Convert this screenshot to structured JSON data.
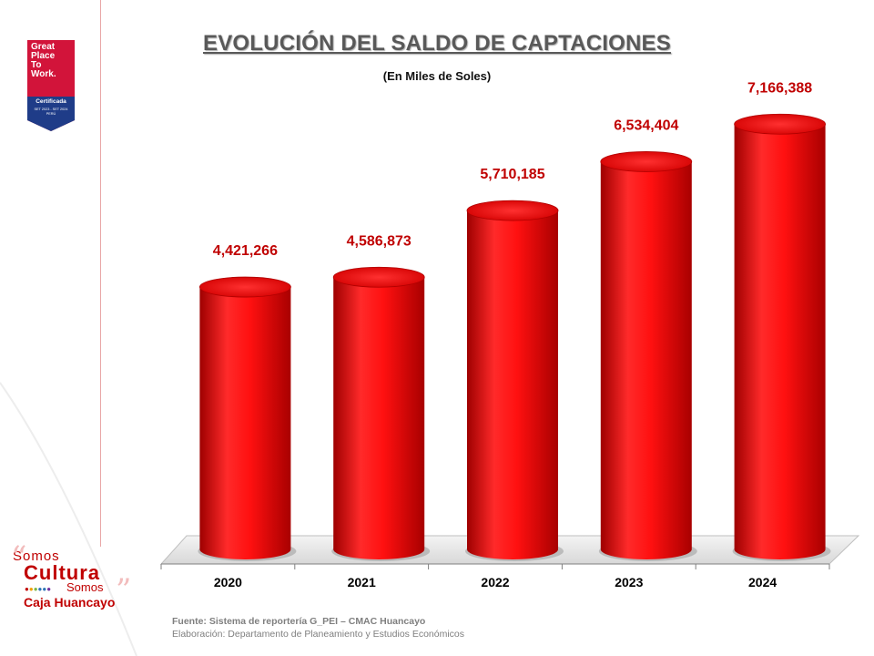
{
  "badge": {
    "line1": "Great",
    "line2": "Place",
    "line3": "To",
    "line4": "Work.",
    "certified": "Certificada",
    "period": "SET 2023 - SET 2024",
    "country": "PERÚ",
    "color": "#d2143a",
    "band_color": "#1f3c88"
  },
  "brand": {
    "somos_top": "Somos",
    "cultura": "Cultura",
    "somos_bottom": "Somos",
    "caja": "Caja Huancayo",
    "dot_colors": [
      "#c00000",
      "#f0a000",
      "#7ab648",
      "#2e75b6",
      "#2e75b6",
      "#7030a0"
    ]
  },
  "footer": {
    "source": "Fuente: Sistema de reportería G_PEI – CMAC Huancayo",
    "prepared_by": "Elaboración: Departamento de Planeamiento y Estudios Económicos"
  },
  "chart_data": {
    "type": "bar",
    "title": "EVOLUCIÓN DEL SALDO DE CAPTACIONES",
    "subtitle": "(En Miles de Soles)",
    "categories": [
      "2020",
      "2021",
      "2022",
      "2023",
      "2024"
    ],
    "values": [
      4421266,
      4586873,
      5710185,
      6534404,
      7166388
    ],
    "value_labels": [
      "4,421,266",
      "4,586,873",
      "5,710,185",
      "6,534,404",
      "7,166,388"
    ],
    "xlabel": "",
    "ylabel": "",
    "ylim": [
      0,
      7800000
    ],
    "grid": false,
    "legend": "none",
    "bar_color": "#e60000",
    "label_color": "#c00000"
  }
}
